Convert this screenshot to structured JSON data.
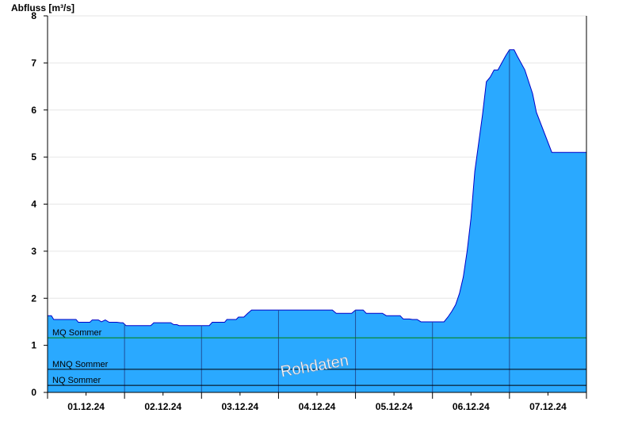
{
  "chart_data": {
    "type": "area",
    "ylabel": "Abfluss [m³/s]",
    "xlabel": "",
    "ylim": [
      0,
      8
    ],
    "yticks": [
      0,
      1,
      2,
      3,
      4,
      5,
      6,
      7,
      8
    ],
    "xlim_days": [
      0,
      7
    ],
    "xticks": [
      {
        "label": "01.12.24",
        "day": 0.5
      },
      {
        "label": "02.12.24",
        "day": 1.5
      },
      {
        "label": "03.12.24",
        "day": 2.5
      },
      {
        "label": "04.12.24",
        "day": 3.5
      },
      {
        "label": "05.12.24",
        "day": 4.5
      },
      {
        "label": "06.12.24",
        "day": 5.5
      },
      {
        "label": "07.12.24",
        "day": 6.5
      }
    ],
    "grid": true,
    "fill_color": "#2aa9ff",
    "line_color": "#0000c8",
    "series": [
      {
        "x": [
          0.0,
          0.05,
          0.08,
          0.37,
          0.4,
          0.55,
          0.58,
          0.66,
          0.7,
          0.75,
          0.8,
          0.85,
          0.9,
          0.95,
          0.98,
          1.02,
          1.06,
          1.34,
          1.38,
          1.6,
          1.64,
          1.68,
          1.71,
          1.74,
          1.77,
          2.1,
          2.14,
          2.3,
          2.33,
          2.45,
          2.48,
          2.55,
          2.6,
          2.65,
          2.7,
          3.7,
          3.75,
          3.95,
          4.0,
          4.1,
          4.14,
          4.35,
          4.4,
          4.58,
          4.62,
          4.7,
          4.74,
          4.8,
          4.85,
          4.9,
          4.95,
          5.02,
          5.06,
          5.1,
          5.15,
          5.2,
          5.25,
          5.3,
          5.35,
          5.4,
          5.45,
          5.5,
          5.55,
          5.6,
          5.65,
          5.7,
          5.75,
          5.8,
          5.85,
          5.9,
          5.95,
          6.0,
          6.03,
          6.06,
          6.1,
          6.2,
          6.22,
          6.3,
          6.35,
          6.55,
          6.6,
          6.65,
          6.7,
          6.75,
          6.8,
          6.85,
          6.9,
          6.95,
          7.0
        ],
        "y": [
          1.63,
          1.63,
          1.55,
          1.55,
          1.49,
          1.49,
          1.54,
          1.54,
          1.5,
          1.54,
          1.49,
          1.49,
          1.49,
          1.48,
          1.48,
          1.42,
          1.42,
          1.42,
          1.48,
          1.48,
          1.44,
          1.44,
          1.42,
          1.42,
          1.42,
          1.42,
          1.49,
          1.49,
          1.55,
          1.55,
          1.6,
          1.6,
          1.68,
          1.75,
          1.75,
          1.75,
          1.68,
          1.68,
          1.75,
          1.75,
          1.68,
          1.68,
          1.63,
          1.63,
          1.56,
          1.56,
          1.55,
          1.55,
          1.5,
          1.5,
          1.5,
          1.5,
          1.5,
          1.5,
          1.5,
          1.6,
          1.72,
          1.86,
          2.1,
          2.45,
          3.0,
          3.7,
          4.7,
          5.3,
          5.9,
          6.6,
          6.7,
          6.85,
          6.85,
          7.0,
          7.15,
          7.28,
          7.28,
          7.28,
          7.15,
          6.85,
          6.75,
          6.35,
          5.95,
          5.1,
          5.1,
          5.1,
          5.1,
          5.1,
          5.1,
          5.1,
          5.1,
          5.1,
          5.1
        ]
      }
    ],
    "reference_lines": [
      {
        "label": "MQ Sommer",
        "value": 1.16,
        "color": "#008000"
      },
      {
        "label": "MNQ Sommer",
        "value": 0.49,
        "color": "#000000"
      },
      {
        "label": "NQ Sommer",
        "value": 0.15,
        "color": "#000000"
      }
    ],
    "watermark": "Rohdaten"
  }
}
